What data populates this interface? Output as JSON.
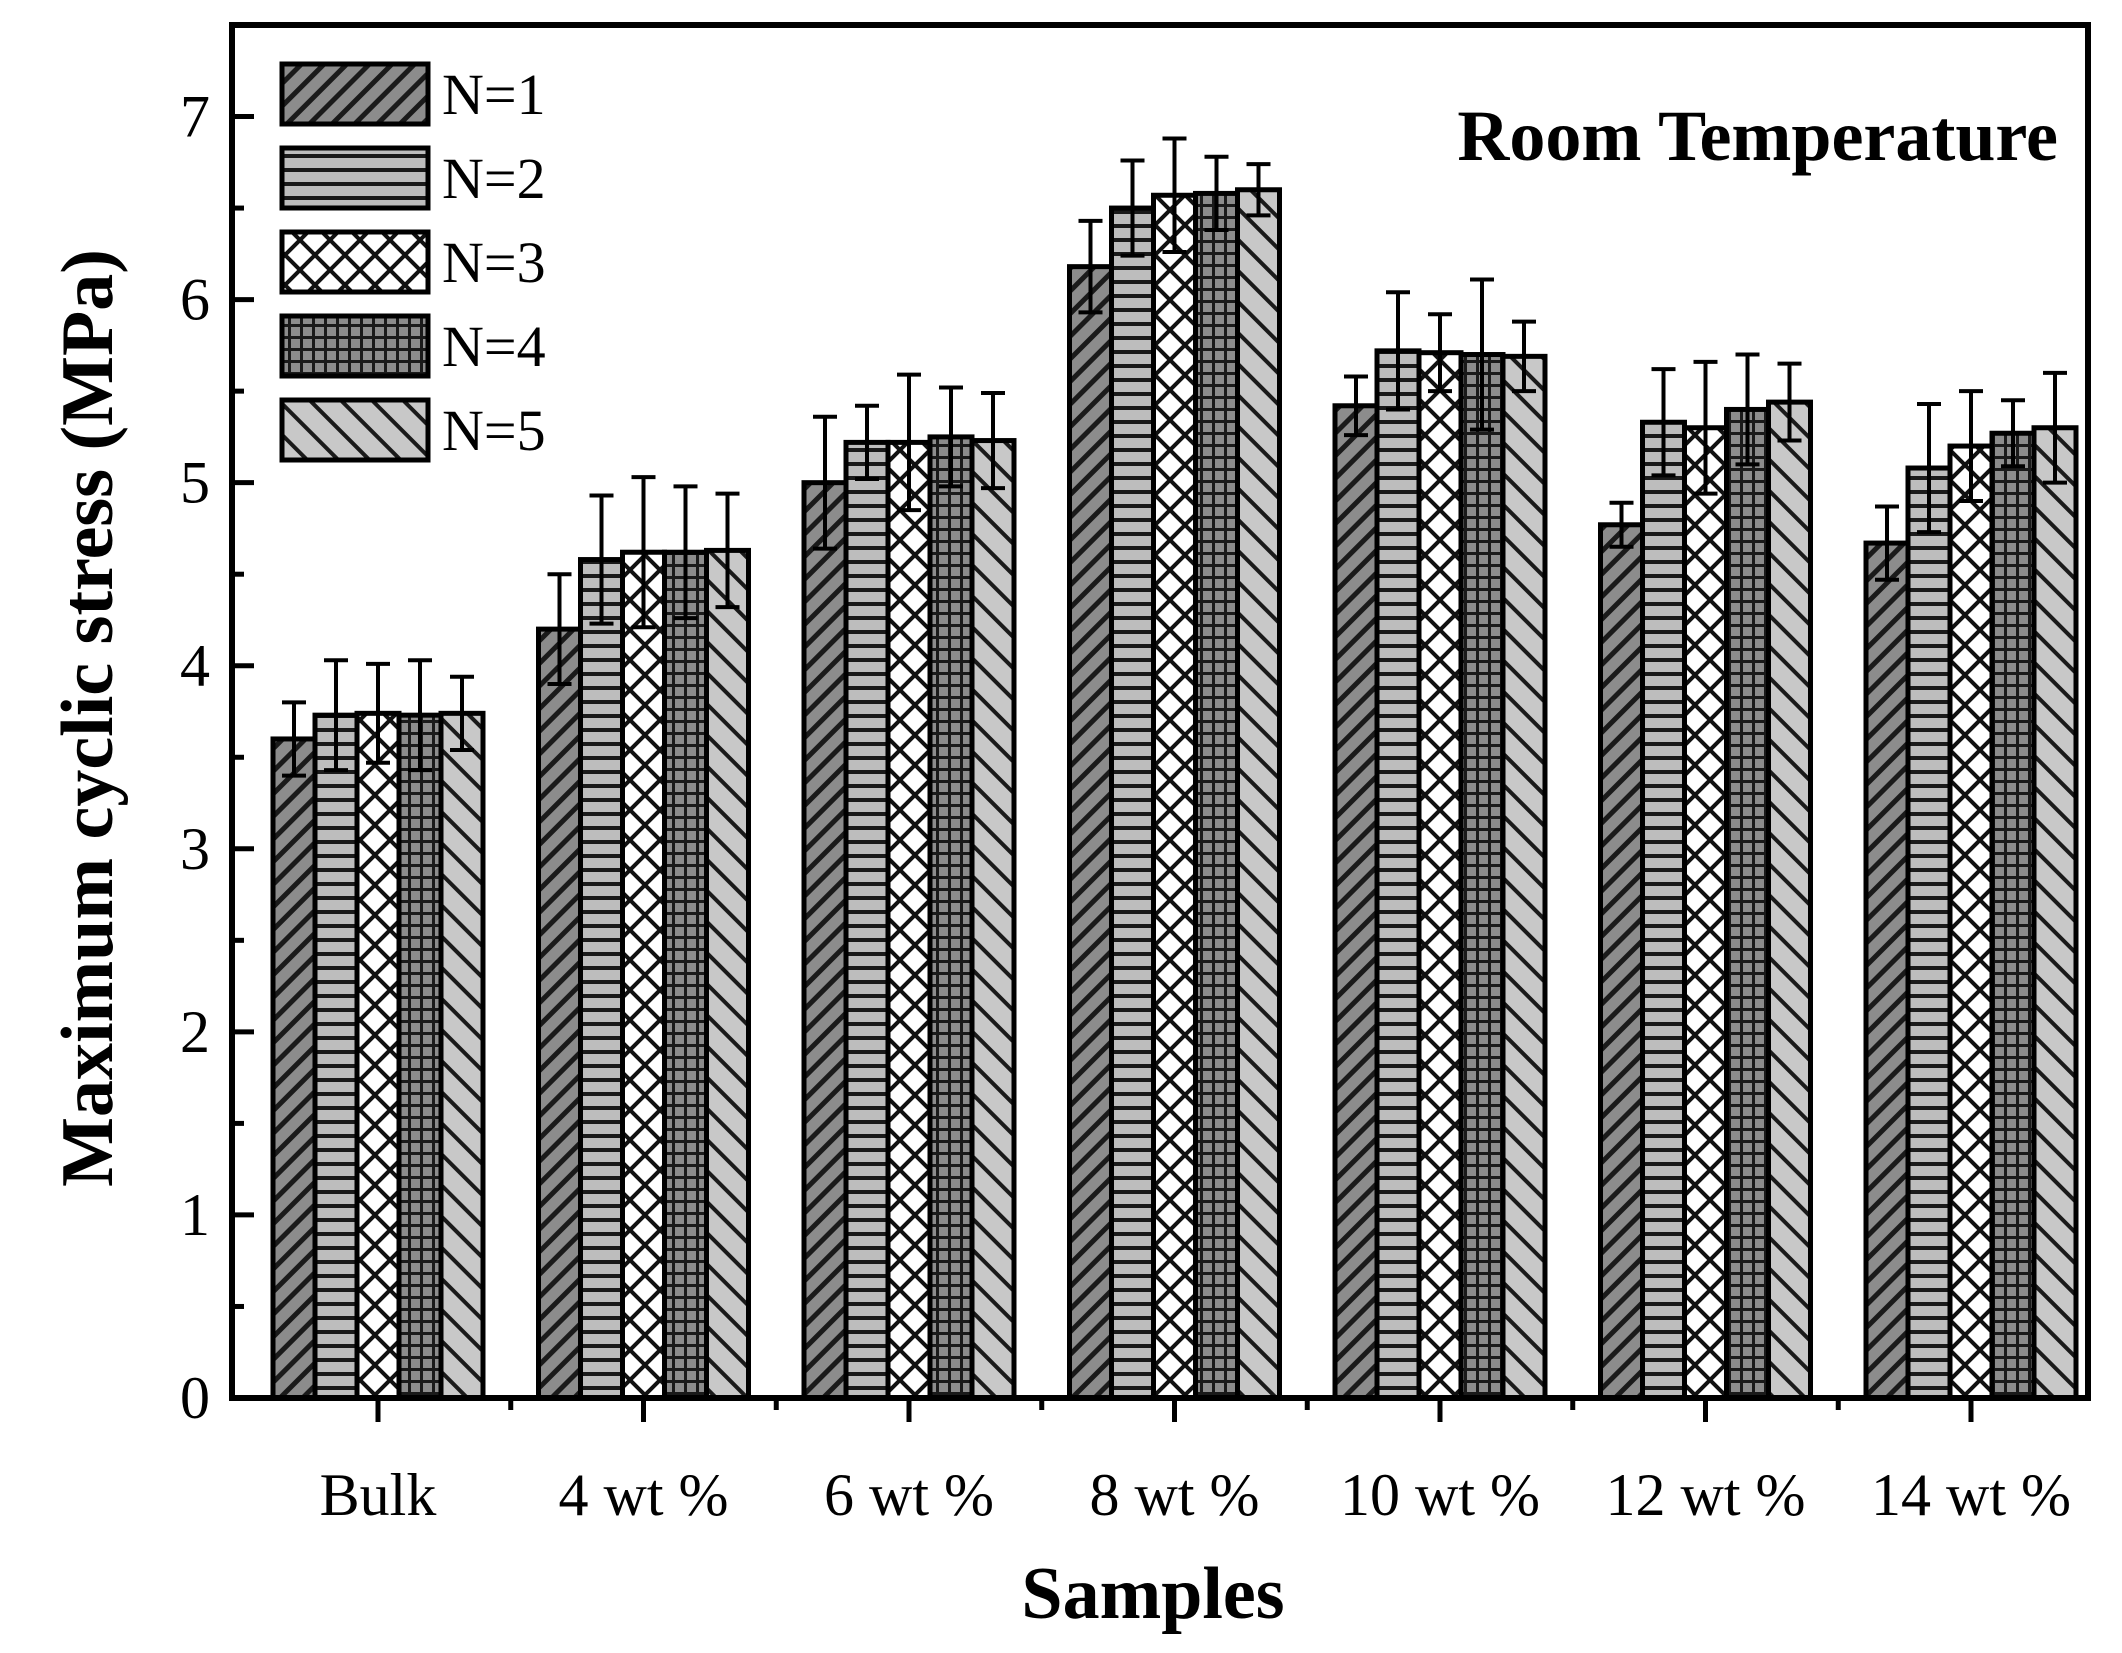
{
  "chart_data": {
    "type": "bar",
    "title": "",
    "annotation": "Room Temperature",
    "xlabel": "Samples",
    "ylabel": "Maximum cyclic stress (MPa)",
    "ylim": [
      0,
      7.5
    ],
    "yticks": [
      0,
      1,
      2,
      3,
      4,
      5,
      6,
      7
    ],
    "ytick_labels": [
      "0",
      "1",
      "2",
      "3",
      "4",
      "5",
      "6",
      "7"
    ],
    "grid": false,
    "legend_position": "top-left",
    "categories": [
      "Bulk",
      "4 wt %",
      "6 wt %",
      "8 wt %",
      "10 wt %",
      "12 wt %",
      "14 wt %"
    ],
    "series": [
      {
        "name": "N=1",
        "values": [
          3.6,
          4.2,
          5.0,
          6.18,
          5.42,
          4.77,
          4.67
        ],
        "errors": [
          0.2,
          0.3,
          0.36,
          0.25,
          0.16,
          0.12,
          0.2
        ],
        "pattern": "diag-fwd",
        "color": "#8c8c8c"
      },
      {
        "name": "N=2",
        "values": [
          3.73,
          4.58,
          5.22,
          6.5,
          5.72,
          5.33,
          5.08
        ],
        "errors": [
          0.3,
          0.35,
          0.2,
          0.26,
          0.32,
          0.29,
          0.35
        ],
        "pattern": "horiz",
        "color": "#bdbdbd"
      },
      {
        "name": "N=3",
        "values": [
          3.74,
          4.62,
          5.22,
          6.57,
          5.71,
          5.3,
          5.2
        ],
        "errors": [
          0.27,
          0.41,
          0.37,
          0.31,
          0.21,
          0.36,
          0.3
        ],
        "pattern": "cross",
        "color": "#ffffff"
      },
      {
        "name": "N=4",
        "values": [
          3.73,
          4.62,
          5.25,
          6.58,
          5.7,
          5.4,
          5.27
        ],
        "errors": [
          0.3,
          0.36,
          0.27,
          0.2,
          0.41,
          0.3,
          0.18
        ],
        "pattern": "grid",
        "color": "#8c8c8c"
      },
      {
        "name": "N=5",
        "values": [
          3.74,
          4.63,
          5.23,
          6.6,
          5.69,
          5.44,
          5.3
        ],
        "errors": [
          0.2,
          0.31,
          0.26,
          0.14,
          0.19,
          0.21,
          0.3
        ],
        "pattern": "diag-back",
        "color": "#c8c8c8"
      }
    ]
  }
}
